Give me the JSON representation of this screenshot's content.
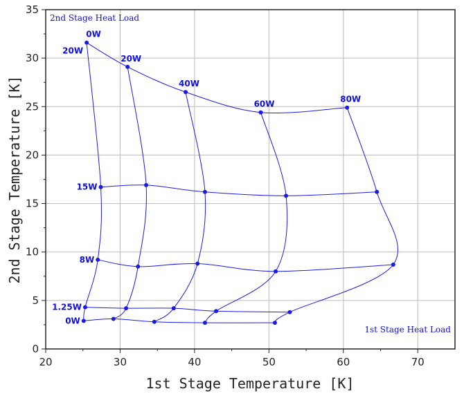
{
  "chart_data": {
    "type": "line",
    "xlabel": "1st Stage Temperature [K]",
    "ylabel": "2nd Stage Temperature [K]",
    "xlim": [
      20,
      75
    ],
    "ylim": [
      0,
      35
    ],
    "xticks": [
      20,
      30,
      40,
      50,
      60,
      70
    ],
    "yticks": [
      0,
      5,
      10,
      15,
      20,
      25,
      30,
      35
    ],
    "grid": true,
    "annotations": {
      "top_left": "2nd Stage Heat Load",
      "bottom_right": "1st Stage Heat Load"
    },
    "first_stage_loads": [
      "0W",
      "20W",
      "40W",
      "60W",
      "80W"
    ],
    "second_stage_loads": [
      "0W",
      "1.25W",
      "8W",
      "15W",
      "20W"
    ],
    "points": [
      [
        [
          25.1,
          2.9
        ],
        [
          29.1,
          3.1
        ],
        [
          34.6,
          2.8
        ],
        [
          41.4,
          2.7
        ],
        [
          50.8,
          2.7
        ]
      ],
      [
        [
          25.3,
          4.3
        ],
        [
          30.8,
          4.2
        ],
        [
          37.2,
          4.2
        ],
        [
          42.9,
          3.9
        ],
        [
          52.8,
          3.8
        ]
      ],
      [
        [
          27.0,
          9.2
        ],
        [
          32.4,
          8.5
        ],
        [
          40.4,
          8.8
        ],
        [
          50.9,
          8.0
        ],
        [
          66.7,
          8.7
        ]
      ],
      [
        [
          27.4,
          16.7
        ],
        [
          33.5,
          16.9
        ],
        [
          41.4,
          16.2
        ],
        [
          52.3,
          15.8
        ],
        [
          64.5,
          16.2
        ]
      ],
      [
        [
          25.5,
          31.6
        ],
        [
          31.0,
          29.1
        ],
        [
          38.8,
          26.5
        ],
        [
          48.9,
          24.4
        ],
        [
          60.5,
          24.9
        ]
      ]
    ],
    "series_color": "#1a1ae6"
  }
}
